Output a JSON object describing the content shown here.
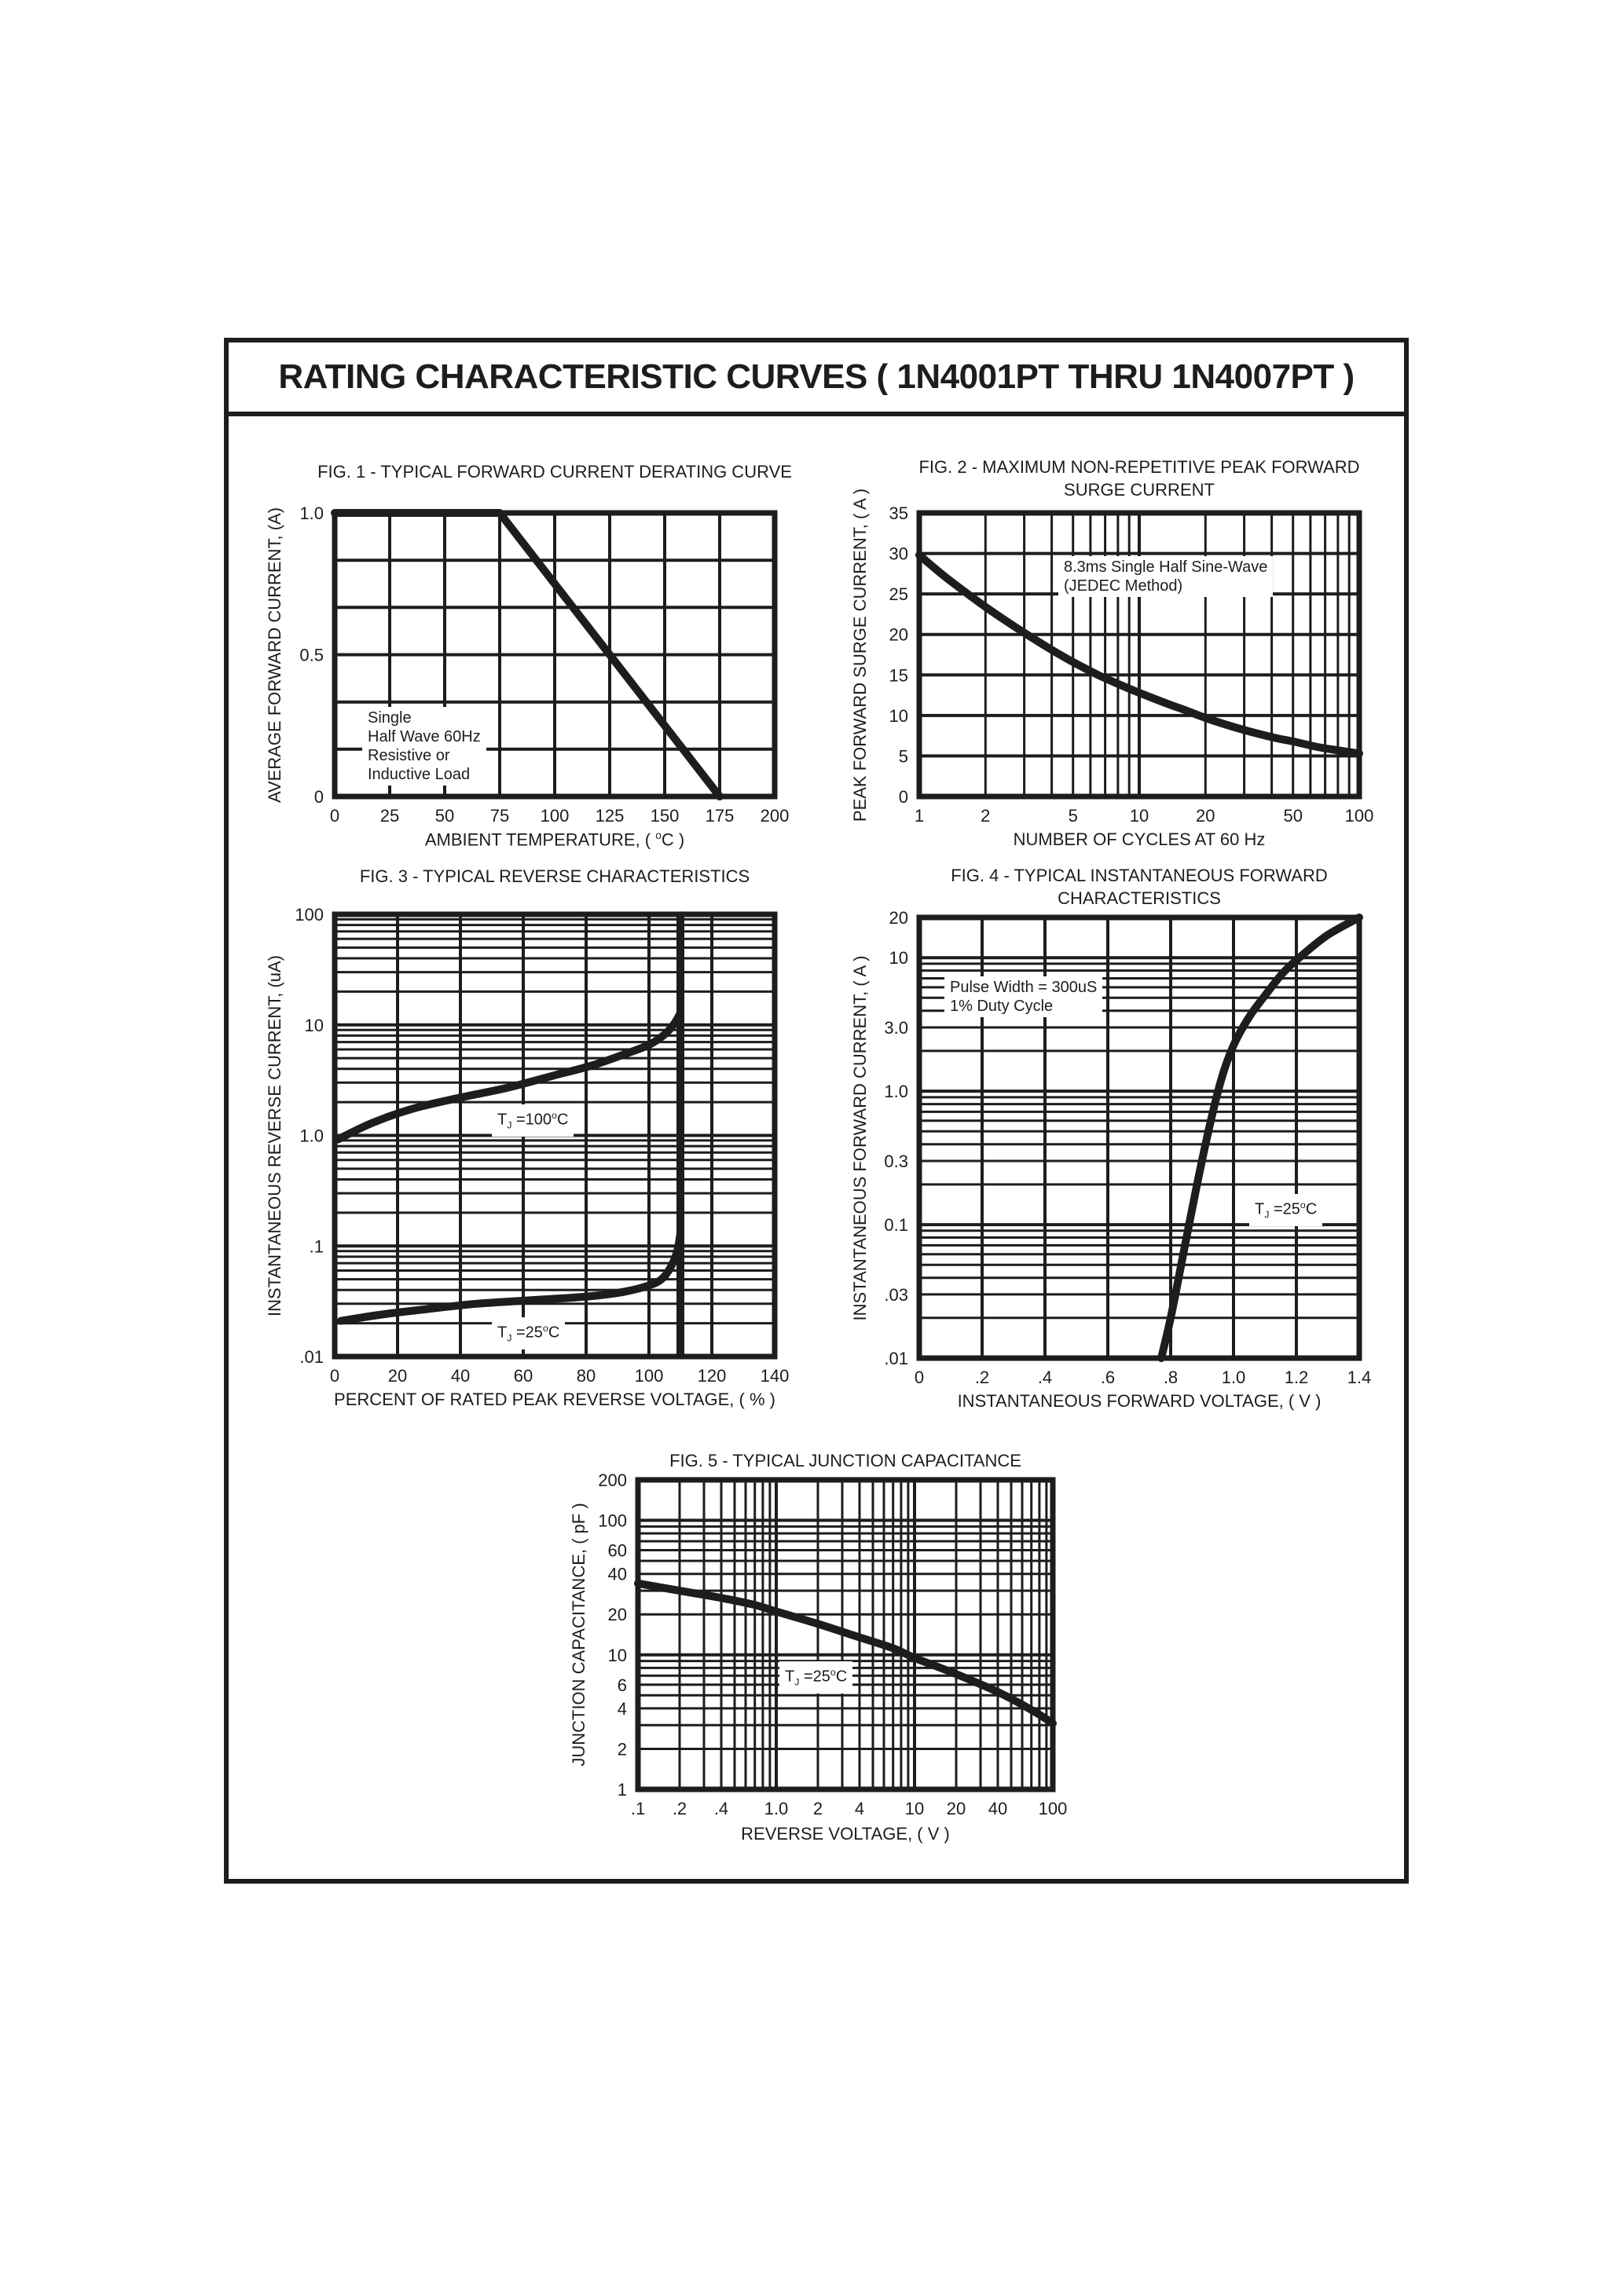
{
  "page": {
    "title": "RATING CHARACTERISTIC CURVES ( 1N4001PT THRU 1N4007PT )",
    "ink_color": "#1d1d1d",
    "background_color": "#ffffff"
  },
  "chart_data": [
    {
      "id": "fig1",
      "type": "line",
      "title": "FIG. 1 - TYPICAL FORWARD CURRENT DERATING CURVE",
      "ylabel": "AVERAGE FORWARD CURRENT, (A)",
      "xlabel": [
        {
          "t": "AMBIENT TEMPERATURE, ( "
        },
        {
          "t": "o",
          "sup": true
        },
        {
          "t": "C )"
        }
      ],
      "x_axis": {
        "type": "linear",
        "min": 0,
        "max": 200,
        "ticks": [
          {
            "v": 0,
            "l": "0"
          },
          {
            "v": 25,
            "l": "25"
          },
          {
            "v": 50,
            "l": "50"
          },
          {
            "v": 75,
            "l": "75"
          },
          {
            "v": 100,
            "l": "100"
          },
          {
            "v": 125,
            "l": "125"
          },
          {
            "v": 150,
            "l": "150"
          },
          {
            "v": 175,
            "l": "175"
          },
          {
            "v": 200,
            "l": "200"
          }
        ],
        "grid": [
          0,
          25,
          50,
          75,
          100,
          125,
          150,
          175,
          200
        ]
      },
      "y_axis": {
        "type": "linear",
        "min": 0,
        "max": 1,
        "ticks": [
          {
            "v": 0,
            "l": "0"
          },
          {
            "v": 0.5,
            "l": "0.5"
          },
          {
            "v": 1,
            "l": "1.0"
          }
        ],
        "grid": [
          0,
          0.1667,
          0.3333,
          0.5,
          0.6667,
          0.8333,
          1
        ]
      },
      "series": [
        {
          "name": "forward-current-derating",
          "sharp": true,
          "points": [
            [
              0,
              1
            ],
            [
              75,
              1
            ],
            [
              175,
              0
            ]
          ]
        }
      ],
      "annotations": [
        {
          "x": 12.5,
          "y": 0.315,
          "lines": [
            [
              {
                "t": "Single"
              }
            ],
            [
              {
                "t": "Half Wave 60Hz"
              }
            ],
            [
              {
                "t": "Resistive or"
              }
            ],
            [
              {
                "t": "Inductive Load"
              }
            ]
          ]
        }
      ]
    },
    {
      "id": "fig2",
      "type": "line",
      "title": "FIG. 2 - MAXIMUM NON-REPETITIVE PEAK FORWARD\nSURGE CURRENT",
      "ylabel": "PEAK FORWARD SURGE CURRENT, ( A )",
      "xlabel": [
        {
          "t": "NUMBER OF CYCLES AT 60 Hz"
        }
      ],
      "x_axis": {
        "type": "log",
        "min": 1,
        "max": 100,
        "ticks": [
          {
            "v": 1,
            "l": "1"
          },
          {
            "v": 2,
            "l": "2"
          },
          {
            "v": 5,
            "l": "5"
          },
          {
            "v": 10,
            "l": "10"
          },
          {
            "v": 20,
            "l": "20"
          },
          {
            "v": 50,
            "l": "50"
          },
          {
            "v": 100,
            "l": "100"
          }
        ]
      },
      "y_axis": {
        "type": "linear",
        "min": 0,
        "max": 35,
        "ticks": [
          {
            "v": 0,
            "l": "0"
          },
          {
            "v": 5,
            "l": "5"
          },
          {
            "v": 10,
            "l": "10"
          },
          {
            "v": 15,
            "l": "15"
          },
          {
            "v": 20,
            "l": "20"
          },
          {
            "v": 25,
            "l": "25"
          },
          {
            "v": 30,
            "l": "30"
          },
          {
            "v": 35,
            "l": "35"
          }
        ],
        "grid": [
          0,
          5,
          10,
          15,
          20,
          25,
          30,
          35
        ]
      },
      "series": [
        {
          "name": "peak-surge-current",
          "points": [
            [
              1,
              29.8
            ],
            [
              1.3,
              27.2
            ],
            [
              1.7,
              24.8
            ],
            [
              2,
              23.4
            ],
            [
              2.6,
              21.3
            ],
            [
              3.3,
              19.5
            ],
            [
              4,
              18.1
            ],
            [
              5,
              16.6
            ],
            [
              6.5,
              15.0
            ],
            [
              8,
              13.9
            ],
            [
              10,
              12.8
            ],
            [
              13,
              11.6
            ],
            [
              16,
              10.7
            ],
            [
              20,
              9.7
            ],
            [
              26,
              8.7
            ],
            [
              33,
              7.9
            ],
            [
              42,
              7.2
            ],
            [
              50,
              6.8
            ],
            [
              65,
              6.1
            ],
            [
              80,
              5.7
            ],
            [
              100,
              5.3
            ]
          ]
        }
      ],
      "annotations": [
        {
          "x": 4.3,
          "y": 29.7,
          "lines": [
            [
              {
                "t": "8.3ms Single Half Sine-Wave"
              }
            ],
            [
              {
                "t": "(JEDEC Method)"
              }
            ]
          ]
        }
      ]
    },
    {
      "id": "fig3",
      "type": "line",
      "title": "FIG. 3 - TYPICAL REVERSE CHARACTERISTICS",
      "ylabel": "INSTANTANEOUS REVERSE CURRENT, (uA)",
      "xlabel": [
        {
          "t": "PERCENT OF RATED PEAK REVERSE VOLTAGE, ( % )"
        }
      ],
      "x_axis": {
        "type": "linear",
        "min": 0,
        "max": 140,
        "ticks": [
          {
            "v": 0,
            "l": "0"
          },
          {
            "v": 20,
            "l": "20"
          },
          {
            "v": 40,
            "l": "40"
          },
          {
            "v": 60,
            "l": "60"
          },
          {
            "v": 80,
            "l": "80"
          },
          {
            "v": 100,
            "l": "100"
          },
          {
            "v": 120,
            "l": "120"
          },
          {
            "v": 140,
            "l": "140"
          }
        ],
        "grid": [
          0,
          20,
          40,
          60,
          80,
          100,
          120,
          140
        ]
      },
      "y_axis": {
        "type": "log",
        "min": 0.01,
        "max": 100,
        "ticks": [
          {
            "v": 100,
            "l": "100"
          },
          {
            "v": 10,
            "l": "10"
          },
          {
            "v": 1,
            "l": "1.0"
          },
          {
            "v": 0.1,
            "l": ".1"
          },
          {
            "v": 0.01,
            "l": ".01"
          }
        ]
      },
      "series": [
        {
          "name": "tj-100c",
          "points": [
            [
              1,
              0.92
            ],
            [
              12,
              1.3
            ],
            [
              25,
              1.75
            ],
            [
              40,
              2.2
            ],
            [
              55,
              2.7
            ],
            [
              70,
              3.5
            ],
            [
              82,
              4.3
            ],
            [
              92,
              5.4
            ],
            [
              100,
              6.6
            ],
            [
              105,
              8.2
            ],
            [
              108,
              10.2
            ],
            [
              109.8,
              12.5
            ]
          ]
        },
        {
          "name": "tj-25c",
          "points": [
            [
              2,
              0.021
            ],
            [
              15,
              0.024
            ],
            [
              30,
              0.027
            ],
            [
              45,
              0.03
            ],
            [
              60,
              0.032
            ],
            [
              75,
              0.034
            ],
            [
              85,
              0.036
            ],
            [
              93,
              0.039
            ],
            [
              100,
              0.044
            ],
            [
              104,
              0.05
            ],
            [
              107,
              0.065
            ],
            [
              109,
              0.09
            ],
            [
              110,
              0.13
            ]
          ]
        },
        {
          "name": "breakdown-asymptote",
          "sharp": true,
          "points": [
            [
              110,
              0.0105
            ],
            [
              110,
              98
            ]
          ]
        }
      ],
      "annotations": [
        {
          "x": 50,
          "y": 1.9,
          "lines": [
            [
              {
                "t": "T"
              },
              {
                "t": "J",
                "sub": true
              },
              {
                "t": " =100"
              },
              {
                "t": "o",
                "sup": true
              },
              {
                "t": "C"
              }
            ]
          ]
        },
        {
          "x": 50,
          "y": 0.0225,
          "lines": [
            [
              {
                "t": "T"
              },
              {
                "t": "J",
                "sub": true
              },
              {
                "t": " =25"
              },
              {
                "t": "o",
                "sup": true
              },
              {
                "t": "C"
              }
            ]
          ]
        }
      ]
    },
    {
      "id": "fig4",
      "type": "line",
      "title": "FIG. 4 - TYPICAL INSTANTANEOUS FORWARD\nCHARACTERISTICS",
      "ylabel": "INSTANTANEOUS FORWARD CURRENT, ( A )",
      "xlabel": [
        {
          "t": "INSTANTANEOUS FORWARD VOLTAGE, ( V )"
        }
      ],
      "x_axis": {
        "type": "linear",
        "min": 0,
        "max": 1.4,
        "ticks": [
          {
            "v": 0,
            "l": "0"
          },
          {
            "v": 0.2,
            "l": ".2"
          },
          {
            "v": 0.4,
            "l": ".4"
          },
          {
            "v": 0.6,
            "l": ".6"
          },
          {
            "v": 0.8,
            "l": ".8"
          },
          {
            "v": 1.0,
            "l": "1.0"
          },
          {
            "v": 1.2,
            "l": "1.2"
          },
          {
            "v": 1.4,
            "l": "1.4"
          }
        ],
        "grid": [
          0,
          0.2,
          0.4,
          0.6,
          0.8,
          1.0,
          1.2,
          1.4
        ]
      },
      "y_axis": {
        "type": "log",
        "min": 0.01,
        "max": 20,
        "ticks": [
          {
            "v": 20,
            "l": "20"
          },
          {
            "v": 10,
            "l": "10"
          },
          {
            "v": 3,
            "l": "3.0"
          },
          {
            "v": 1,
            "l": "1.0"
          },
          {
            "v": 0.3,
            "l": "0.3"
          },
          {
            "v": 0.1,
            "l": "0.1"
          },
          {
            "v": 0.03,
            "l": ".03"
          },
          {
            "v": 0.01,
            "l": ".01"
          }
        ]
      },
      "series": [
        {
          "name": "forward-voltage",
          "points": [
            [
              0.77,
              0.01
            ],
            [
              0.8,
              0.02
            ],
            [
              0.84,
              0.06
            ],
            [
              0.88,
              0.18
            ],
            [
              0.92,
              0.5
            ],
            [
              0.96,
              1.2
            ],
            [
              1.0,
              2.2
            ],
            [
              1.05,
              3.6
            ],
            [
              1.1,
              5.2
            ],
            [
              1.16,
              7.8
            ],
            [
              1.22,
              10.5
            ],
            [
              1.3,
              14.8
            ],
            [
              1.4,
              20
            ]
          ]
        }
      ],
      "annotations": [
        {
          "x": 0.08,
          "y": 7.2,
          "lines": [
            [
              {
                "t": "Pulse Width = 300uS"
              }
            ],
            [
              {
                "t": "1% Duty Cycle"
              }
            ]
          ]
        },
        {
          "x": 1.05,
          "y": 0.17,
          "lines": [
            [
              {
                "t": "T"
              },
              {
                "t": "J",
                "sub": true
              },
              {
                "t": " =25"
              },
              {
                "t": "o",
                "sup": true
              },
              {
                "t": "C"
              }
            ]
          ]
        }
      ]
    },
    {
      "id": "fig5",
      "type": "line",
      "title": "FIG. 5 - TYPICAL JUNCTION CAPACITANCE",
      "ylabel": "JUNCTION CAPACITANCE, ( pF )",
      "xlabel": [
        {
          "t": "REVERSE VOLTAGE, ( V )"
        }
      ],
      "x_axis": {
        "type": "log",
        "min": 0.1,
        "max": 100,
        "ticks": [
          {
            "v": 0.1,
            "l": ".1"
          },
          {
            "v": 0.2,
            "l": ".2"
          },
          {
            "v": 0.4,
            "l": ".4"
          },
          {
            "v": 1,
            "l": "1.0"
          },
          {
            "v": 2,
            "l": "2"
          },
          {
            "v": 4,
            "l": "4"
          },
          {
            "v": 10,
            "l": "10"
          },
          {
            "v": 20,
            "l": "20"
          },
          {
            "v": 40,
            "l": "40"
          },
          {
            "v": 100,
            "l": "100"
          }
        ]
      },
      "y_axis": {
        "type": "log",
        "min": 1,
        "max": 200,
        "ticks": [
          {
            "v": 200,
            "l": "200"
          },
          {
            "v": 100,
            "l": "100"
          },
          {
            "v": 60,
            "l": "60"
          },
          {
            "v": 40,
            "l": "40"
          },
          {
            "v": 20,
            "l": "20"
          },
          {
            "v": 10,
            "l": "10"
          },
          {
            "v": 6,
            "l": "6"
          },
          {
            "v": 4,
            "l": "4"
          },
          {
            "v": 2,
            "l": "2"
          },
          {
            "v": 1,
            "l": "1"
          }
        ]
      },
      "series": [
        {
          "name": "junction-capacitance",
          "points": [
            [
              0.1,
              34
            ],
            [
              0.2,
              30
            ],
            [
              0.4,
              26.5
            ],
            [
              0.7,
              23.5
            ],
            [
              1,
              21
            ],
            [
              2,
              17
            ],
            [
              4,
              13.5
            ],
            [
              7,
              11.2
            ],
            [
              10,
              9.5
            ],
            [
              20,
              7.2
            ],
            [
              40,
              5.3
            ],
            [
              70,
              3.9
            ],
            [
              100,
              3.1
            ]
          ]
        }
      ],
      "annotations": [
        {
          "x": 1.05,
          "y": 9,
          "lines": [
            [
              {
                "t": "T"
              },
              {
                "t": "J",
                "sub": true
              },
              {
                "t": " =25"
              },
              {
                "t": "o",
                "sup": true
              },
              {
                "t": "C"
              }
            ]
          ]
        }
      ]
    }
  ]
}
